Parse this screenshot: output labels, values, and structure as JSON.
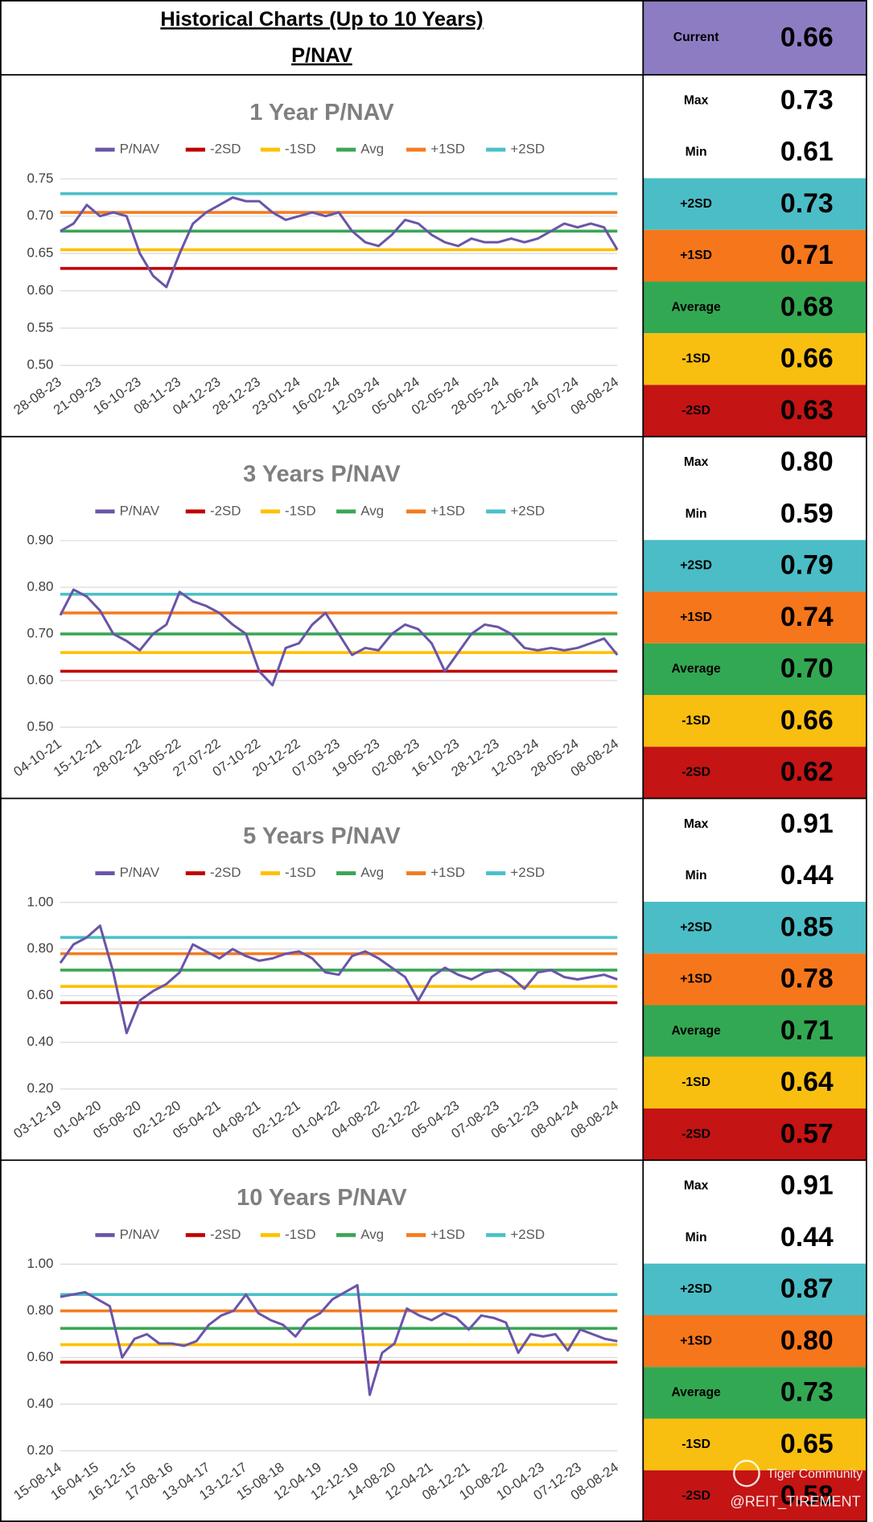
{
  "header": {
    "title": "Historical Charts (Up to 10 Years)",
    "subtitle": "P/NAV",
    "current_label": "Current",
    "current_value": "0.66",
    "current_color": "#8e7cc3"
  },
  "chart_data": [
    {
      "type": "line",
      "title": "1 Year P/NAV",
      "legend": "top",
      "grid": true,
      "categories": [
        "28-08-23",
        null,
        null,
        "21-09-23",
        null,
        null,
        "16-10-23",
        null,
        null,
        "08-11-23",
        null,
        null,
        "04-12-23",
        null,
        null,
        "28-12-23",
        null,
        null,
        "23-01-24",
        null,
        null,
        "16-02-24",
        null,
        null,
        "12-03-24",
        null,
        null,
        "05-04-24",
        null,
        null,
        "02-05-24",
        null,
        null,
        "28-05-24",
        null,
        null,
        "21-06-24",
        null,
        null,
        "16-07-24",
        null,
        null,
        "08-08-24"
      ],
      "series": [
        {
          "name": "P/NAV",
          "color": "#6a55a8",
          "values": [
            0.68,
            0.69,
            0.715,
            0.7,
            0.705,
            0.7,
            0.65,
            0.62,
            0.605,
            0.65,
            0.69,
            0.705,
            0.715,
            0.725,
            0.72,
            0.72,
            0.705,
            0.695,
            0.7,
            0.705,
            0.7,
            0.705,
            0.68,
            0.665,
            0.66,
            0.675,
            0.695,
            0.69,
            0.675,
            0.665,
            0.66,
            0.67,
            0.665,
            0.665,
            0.67,
            0.665,
            0.67,
            0.68,
            0.69,
            0.685,
            0.69,
            0.685,
            0.655
          ]
        }
      ],
      "hlines": [
        {
          "name": "-2SD",
          "color": "#c00000",
          "value": 0.63
        },
        {
          "name": "-1SD",
          "color": "#ffc000",
          "value": 0.655
        },
        {
          "name": "Avg",
          "color": "#3aa655",
          "value": 0.68
        },
        {
          "name": "+1SD",
          "color": "#f47b20",
          "value": 0.705
        },
        {
          "name": "+2SD",
          "color": "#4bc0c8",
          "value": 0.73
        }
      ],
      "ylim": [
        0.5,
        0.75
      ],
      "yticks": [
        {
          "value": 0.5,
          "label": "0.50"
        },
        0.55,
        {
          "value": 0.6,
          "label": "0.60"
        },
        0.65,
        {
          "value": 0.7,
          "label": "0.70"
        },
        0.75
      ],
      "stats": [
        {
          "label": "Max",
          "value": "0.73",
          "color": "#ffffff"
        },
        {
          "label": "Min",
          "value": "0.61",
          "color": "#ffffff"
        },
        {
          "label": "+2SD",
          "value": "0.73",
          "color": "#4bbdc6"
        },
        {
          "label": "+1SD",
          "value": "0.71",
          "color": "#f6761b"
        },
        {
          "label": "Average",
          "value": "0.68",
          "color": "#33a853"
        },
        {
          "label": "-1SD",
          "value": "0.66",
          "color": "#f8bf10"
        },
        {
          "label": "-2SD",
          "value": "0.63",
          "color": "#c41414"
        }
      ]
    },
    {
      "type": "line",
      "title": "3 Years P/NAV",
      "legend": "top",
      "grid": true,
      "categories": [
        "04-10-21",
        null,
        null,
        "15-12-21",
        null,
        null,
        "28-02-22",
        null,
        null,
        "13-05-22",
        null,
        null,
        "27-07-22",
        null,
        null,
        "07-10-22",
        null,
        null,
        "20-12-22",
        null,
        null,
        "07-03-23",
        null,
        null,
        "19-05-23",
        null,
        null,
        "02-08-23",
        null,
        null,
        "16-10-23",
        null,
        null,
        "28-12-23",
        null,
        null,
        "12-03-24",
        null,
        null,
        "28-05-24",
        null,
        null,
        "08-08-24"
      ],
      "series": [
        {
          "name": "P/NAV",
          "color": "#6a55a8",
          "values": [
            0.74,
            0.795,
            0.78,
            0.75,
            0.7,
            0.685,
            0.665,
            0.7,
            0.72,
            0.79,
            0.77,
            0.76,
            0.745,
            0.72,
            0.7,
            0.62,
            0.59,
            0.67,
            0.68,
            0.72,
            0.745,
            0.7,
            0.655,
            0.67,
            0.665,
            0.7,
            0.72,
            0.71,
            0.68,
            0.62,
            0.66,
            0.7,
            0.72,
            0.715,
            0.7,
            0.67,
            0.665,
            0.67,
            0.665,
            0.67,
            0.68,
            0.69,
            0.655
          ]
        }
      ],
      "hlines": [
        {
          "name": "-2SD",
          "color": "#c00000",
          "value": 0.62
        },
        {
          "name": "-1SD",
          "color": "#ffc000",
          "value": 0.66
        },
        {
          "name": "Avg",
          "color": "#3aa655",
          "value": 0.7
        },
        {
          "name": "+1SD",
          "color": "#f47b20",
          "value": 0.745
        },
        {
          "name": "+2SD",
          "color": "#4bc0c8",
          "value": 0.785
        }
      ],
      "ylim": [
        0.5,
        0.9
      ],
      "yticks": [
        {
          "value": 0.5,
          "label": "0.50"
        },
        {
          "value": 0.6,
          "label": "0.60"
        },
        {
          "value": 0.7,
          "label": "0.70"
        },
        {
          "value": 0.8,
          "label": "0.80"
        },
        {
          "value": 0.9,
          "label": "0.90"
        }
      ],
      "stats": [
        {
          "label": "Max",
          "value": "0.80",
          "color": "#ffffff"
        },
        {
          "label": "Min",
          "value": "0.59",
          "color": "#ffffff"
        },
        {
          "label": "+2SD",
          "value": "0.79",
          "color": "#4bbdc6"
        },
        {
          "label": "+1SD",
          "value": "0.74",
          "color": "#f6761b"
        },
        {
          "label": "Average",
          "value": "0.70",
          "color": "#33a853"
        },
        {
          "label": "-1SD",
          "value": "0.66",
          "color": "#f8bf10"
        },
        {
          "label": "-2SD",
          "value": "0.62",
          "color": "#c41414"
        }
      ]
    },
    {
      "type": "line",
      "title": "5 Years P/NAV",
      "legend": "top",
      "grid": true,
      "categories": [
        "03-12-19",
        null,
        null,
        "01-04-20",
        null,
        null,
        "05-08-20",
        null,
        null,
        "02-12-20",
        null,
        null,
        "05-04-21",
        null,
        null,
        "04-08-21",
        null,
        null,
        "02-12-21",
        null,
        null,
        "01-04-22",
        null,
        null,
        "04-08-22",
        null,
        null,
        "02-12-22",
        null,
        null,
        "05-04-23",
        null,
        null,
        "07-08-23",
        null,
        null,
        "06-12-23",
        null,
        null,
        "08-04-24",
        null,
        null,
        "08-08-24"
      ],
      "series": [
        {
          "name": "P/NAV",
          "color": "#6a55a8",
          "values": [
            0.74,
            0.82,
            0.85,
            0.9,
            0.7,
            0.44,
            0.58,
            0.62,
            0.65,
            0.7,
            0.82,
            0.79,
            0.76,
            0.8,
            0.77,
            0.75,
            0.76,
            0.78,
            0.79,
            0.76,
            0.7,
            0.69,
            0.77,
            0.79,
            0.76,
            0.72,
            0.68,
            0.58,
            0.68,
            0.72,
            0.69,
            0.67,
            0.7,
            0.71,
            0.68,
            0.63,
            0.7,
            0.71,
            0.68,
            0.67,
            0.68,
            0.69,
            0.67
          ]
        }
      ],
      "hlines": [
        {
          "name": "-2SD",
          "color": "#c00000",
          "value": 0.57
        },
        {
          "name": "-1SD",
          "color": "#ffc000",
          "value": 0.64
        },
        {
          "name": "Avg",
          "color": "#3aa655",
          "value": 0.71
        },
        {
          "name": "+1SD",
          "color": "#f47b20",
          "value": 0.78
        },
        {
          "name": "+2SD",
          "color": "#4bc0c8",
          "value": 0.85
        }
      ],
      "ylim": [
        0.2,
        1.0
      ],
      "yticks": [
        {
          "value": 0.2,
          "label": "0.20"
        },
        {
          "value": 0.4,
          "label": "0.40"
        },
        {
          "value": 0.6,
          "label": "0.60"
        },
        {
          "value": 0.8,
          "label": "0.80"
        },
        {
          "value": 1.0,
          "label": "1.00"
        }
      ],
      "stats": [
        {
          "label": "Max",
          "value": "0.91",
          "color": "#ffffff"
        },
        {
          "label": "Min",
          "value": "0.44",
          "color": "#ffffff"
        },
        {
          "label": "+2SD",
          "value": "0.85",
          "color": "#4bbdc6"
        },
        {
          "label": "+1SD",
          "value": "0.78",
          "color": "#f6761b"
        },
        {
          "label": "Average",
          "value": "0.71",
          "color": "#33a853"
        },
        {
          "label": "-1SD",
          "value": "0.64",
          "color": "#f8bf10"
        },
        {
          "label": "-2SD",
          "value": "0.57",
          "color": "#c41414"
        }
      ]
    },
    {
      "type": "line",
      "title": "10 Years P/NAV",
      "legend": "top",
      "grid": true,
      "categories": [
        "15-08-14",
        null,
        null,
        "16-04-15",
        null,
        null,
        "16-12-15",
        null,
        null,
        "17-08-16",
        null,
        null,
        "13-04-17",
        null,
        null,
        "13-12-17",
        null,
        null,
        "15-08-18",
        null,
        null,
        "12-04-19",
        null,
        null,
        "12-12-19",
        null,
        null,
        "14-08-20",
        null,
        null,
        "12-04-21",
        null,
        null,
        "08-12-21",
        null,
        null,
        "10-08-22",
        null,
        null,
        "10-04-23",
        null,
        null,
        "07-12-23",
        null,
        null,
        "08-08-24"
      ],
      "series": [
        {
          "name": "P/NAV",
          "color": "#6a55a8",
          "values": [
            0.86,
            0.87,
            0.88,
            0.85,
            0.82,
            0.6,
            0.68,
            0.7,
            0.66,
            0.66,
            0.65,
            0.67,
            0.74,
            0.78,
            0.8,
            0.87,
            0.79,
            0.76,
            0.74,
            0.69,
            0.76,
            0.79,
            0.85,
            0.88,
            0.91,
            0.44,
            0.62,
            0.66,
            0.81,
            0.78,
            0.76,
            0.79,
            0.77,
            0.72,
            0.78,
            0.77,
            0.75,
            0.62,
            0.7,
            0.69,
            0.7,
            0.63,
            0.72,
            0.7,
            0.68,
            0.67
          ]
        }
      ],
      "hlines": [
        {
          "name": "-2SD",
          "color": "#c00000",
          "value": 0.58
        },
        {
          "name": "-1SD",
          "color": "#ffc000",
          "value": 0.655
        },
        {
          "name": "Avg",
          "color": "#3aa655",
          "value": 0.725
        },
        {
          "name": "+1SD",
          "color": "#f47b20",
          "value": 0.8
        },
        {
          "name": "+2SD",
          "color": "#4bc0c8",
          "value": 0.87
        }
      ],
      "ylim": [
        0.2,
        1.0
      ],
      "yticks": [
        {
          "value": 0.2,
          "label": "0.20"
        },
        {
          "value": 0.4,
          "label": "0.40"
        },
        {
          "value": 0.6,
          "label": "0.60"
        },
        {
          "value": 0.8,
          "label": "0.80"
        },
        {
          "value": 1.0,
          "label": "1.00"
        }
      ],
      "stats": [
        {
          "label": "Max",
          "value": "0.91",
          "color": "#ffffff"
        },
        {
          "label": "Min",
          "value": "0.44",
          "color": "#ffffff"
        },
        {
          "label": "+2SD",
          "value": "0.87",
          "color": "#4bbdc6"
        },
        {
          "label": "+1SD",
          "value": "0.80",
          "color": "#f6761b"
        },
        {
          "label": "Average",
          "value": "0.73",
          "color": "#33a853"
        },
        {
          "label": "-1SD",
          "value": "0.65",
          "color": "#f8bf10"
        },
        {
          "label": "-2SD",
          "value": "0.58",
          "color": "#c41414"
        }
      ]
    }
  ],
  "watermark": {
    "brand": "Tiger Community",
    "handle": "@REIT_TIREMENT"
  }
}
